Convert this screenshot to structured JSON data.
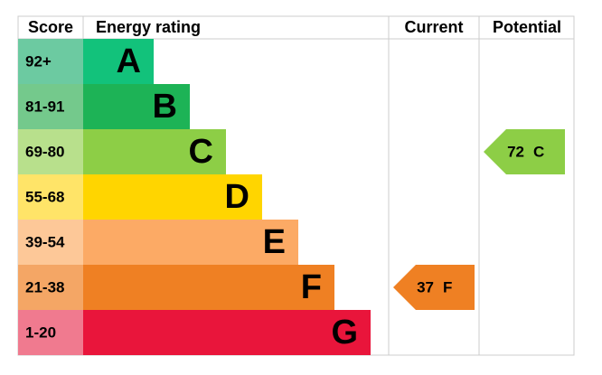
{
  "header": {
    "score": "Score",
    "rating": "Energy rating",
    "current": "Current",
    "potential": "Potential"
  },
  "bands": [
    {
      "range": "92+",
      "letter": "A",
      "color": "#12c27b",
      "light": "#6ccaa1"
    },
    {
      "range": "81-91",
      "letter": "B",
      "color": "#1db356",
      "light": "#74c98c"
    },
    {
      "range": "69-80",
      "letter": "C",
      "color": "#8dce46",
      "light": "#b8e08c"
    },
    {
      "range": "55-68",
      "letter": "D",
      "color": "#ffd500",
      "light": "#ffe468"
    },
    {
      "range": "39-54",
      "letter": "E",
      "color": "#fcaa65",
      "light": "#fdc898"
    },
    {
      "range": "21-38",
      "letter": "F",
      "color": "#ef8023",
      "light": "#f4a665"
    },
    {
      "range": "1-20",
      "letter": "G",
      "color": "#e9153b",
      "light": "#f07a8f"
    }
  ],
  "current": {
    "value": "37",
    "letter": "F",
    "band": 5
  },
  "potential": {
    "value": "72",
    "letter": "C",
    "band": 2
  }
}
